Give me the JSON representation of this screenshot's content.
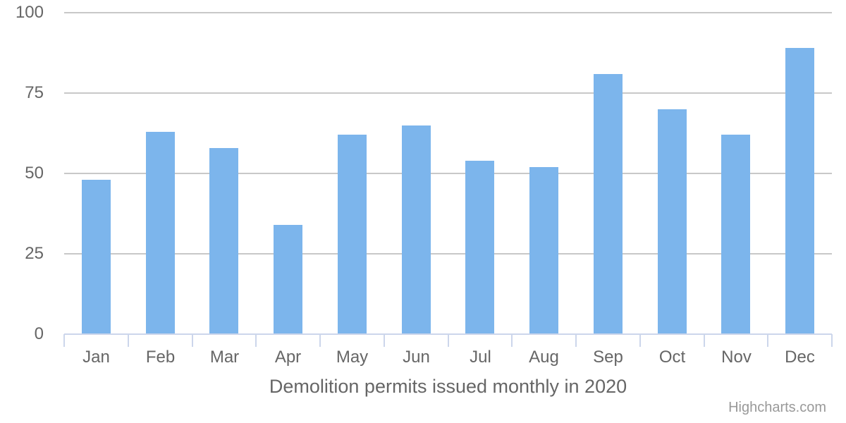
{
  "chart_data": {
    "type": "bar",
    "categories": [
      "Jan",
      "Feb",
      "Mar",
      "Apr",
      "May",
      "Jun",
      "Jul",
      "Aug",
      "Sep",
      "Oct",
      "Nov",
      "Dec"
    ],
    "values": [
      48,
      63,
      58,
      34,
      62,
      65,
      54,
      52,
      81,
      70,
      62,
      89
    ],
    "title": "Demolition permits issued monthly in 2020",
    "xlabel": "",
    "ylabel": "",
    "ylim": [
      0,
      100
    ],
    "yticks": [
      0,
      25,
      50,
      75,
      100
    ],
    "grid": true,
    "legend": false,
    "bar_color": "#7cb5ec",
    "grid_color": "#c8c8c8",
    "axis_line_color": "#ccd6eb",
    "label_color": "#666666",
    "title_color": "#666666"
  },
  "credits": {
    "label": "Highcharts.com",
    "color": "#999999"
  }
}
